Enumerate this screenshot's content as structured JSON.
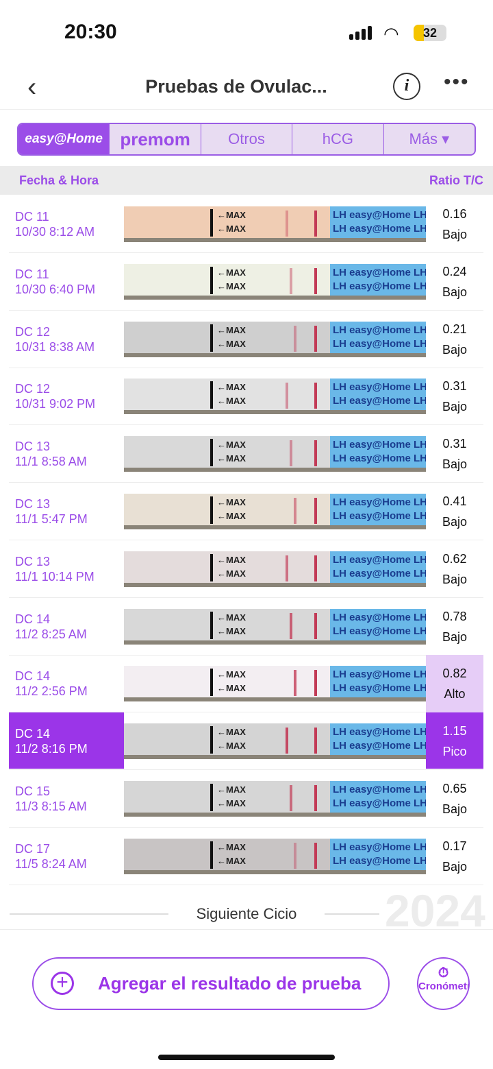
{
  "status": {
    "time": "20:30",
    "battery": "32"
  },
  "nav": {
    "title": "Pruebas de Ovulac...",
    "info": "i",
    "more": "•••"
  },
  "tabs": [
    {
      "label": "easy@Home"
    },
    {
      "label": "premom"
    },
    {
      "label": "Otros"
    },
    {
      "label": "hCG"
    },
    {
      "label": "Más ▾"
    }
  ],
  "table": {
    "col_date": "Fecha & Hora",
    "col_ratio": "Ratio T/C"
  },
  "strip": {
    "max": "←MAX",
    "lh": "LH easy@Home LH",
    "lh2": "LH easy@Home LH"
  },
  "rows": [
    {
      "day": "DC 11",
      "datetime": "10/30 8:12 AM",
      "ratio": "0.16",
      "level": "Bajo",
      "bg": "#f0cdb4"
    },
    {
      "day": "DC 11",
      "datetime": "10/30 6:40 PM",
      "ratio": "0.24",
      "level": "Bajo",
      "bg": "#eef0e4"
    },
    {
      "day": "DC 12",
      "datetime": "10/31 8:38 AM",
      "ratio": "0.21",
      "level": "Bajo",
      "bg": "#cfcfcf"
    },
    {
      "day": "DC 12",
      "datetime": "10/31 9:02 PM",
      "ratio": "0.31",
      "level": "Bajo",
      "bg": "#e2e2e2"
    },
    {
      "day": "DC 13",
      "datetime": "11/1 8:58 AM",
      "ratio": "0.31",
      "level": "Bajo",
      "bg": "#d9d9d9"
    },
    {
      "day": "DC 13",
      "datetime": "11/1 5:47 PM",
      "ratio": "0.41",
      "level": "Bajo",
      "bg": "#e8e0d4"
    },
    {
      "day": "DC 13",
      "datetime": "11/1 10:14 PM",
      "ratio": "0.62",
      "level": "Bajo",
      "bg": "#e4dcdc"
    },
    {
      "day": "DC 14",
      "datetime": "11/2 8:25 AM",
      "ratio": "0.78",
      "level": "Bajo",
      "bg": "#d8d8d8"
    },
    {
      "day": "DC 14",
      "datetime": "11/2 2:56 PM",
      "ratio": "0.82",
      "level": "Alto",
      "bg": "#f3eef2"
    },
    {
      "day": "DC 14",
      "datetime": "11/2 8:16 PM",
      "ratio": "1.15",
      "level": "Pico",
      "bg": "#d4d4d4"
    },
    {
      "day": "DC 15",
      "datetime": "11/3 8:15 AM",
      "ratio": "0.65",
      "level": "Bajo",
      "bg": "#d6d6d6"
    },
    {
      "day": "DC 17",
      "datetime": "11/5 8:24 AM",
      "ratio": "0.17",
      "level": "Bajo",
      "bg": "#c8c4c4"
    }
  ],
  "next_cycle": {
    "label": "Siguiente Cicio",
    "year": "2024"
  },
  "add_button": {
    "label": "Agregar el resultado de prueba"
  },
  "timer": {
    "label": "Cronómetro"
  },
  "colors": {
    "accent": "#9b35e8",
    "alto": "#e6cdf7"
  }
}
